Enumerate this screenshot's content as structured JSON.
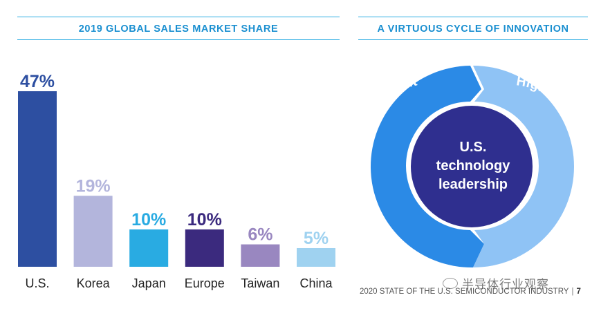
{
  "left_panel": {
    "title": "2019 GLOBAL SALES MARKET SHARE"
  },
  "right_panel": {
    "title": "A VIRTUOUS CYCLE OF INNOVATION",
    "arc_left_text": "Higher R&D Investment",
    "arc_right_text": "Higher revenue and profits",
    "center_lines": [
      "U.S.",
      "technology",
      "leadership"
    ]
  },
  "footer": {
    "text": "2020 STATE OF THE U.S. SEMICONDUCTOR INDUSTRY",
    "page": "7"
  },
  "watermark": {
    "text": "半导体行业观察"
  },
  "colors": {
    "rule": "#29abe2",
    "title": "#1a8fd0",
    "arc_left": "#2b8ae6",
    "arc_right": "#8fc3f5",
    "center": "#2f2f8f"
  },
  "chart_data": {
    "type": "bar",
    "title": "2019 GLOBAL SALES MARKET SHARE",
    "categories": [
      "U.S.",
      "Korea",
      "Japan",
      "Europe",
      "Taiwan",
      "China"
    ],
    "values": [
      47,
      19,
      10,
      10,
      6,
      5
    ],
    "value_labels": [
      "47%",
      "19%",
      "10%",
      "10%",
      "6%",
      "5%"
    ],
    "bar_colors": [
      "#2d4fa1",
      "#b3b5dc",
      "#29abe2",
      "#3b2a7e",
      "#9987c0",
      "#9fd2f0"
    ],
    "label_colors": [
      "#2d4fa1",
      "#b3b5dc",
      "#29abe2",
      "#3b2a7e",
      "#9987c0",
      "#9fd2f0"
    ],
    "ylim": [
      0,
      47
    ],
    "grid": false,
    "legend": "none"
  }
}
